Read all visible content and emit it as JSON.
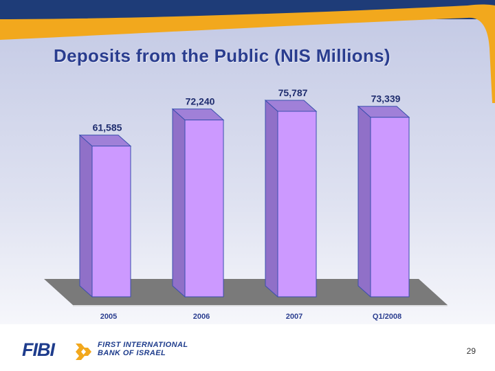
{
  "slide": {
    "title": "Deposits from the Public (NIS Millions)",
    "page_number": "29",
    "logo": {
      "brand": "FIBI",
      "line1": "FIRST INTERNATIONAL",
      "line2": "BANK OF ISRAEL"
    }
  },
  "colors": {
    "bar_front": "#cc99ff",
    "bar_side": "#9070c8",
    "bar_top": "#a080d8",
    "floor": "#7a7a7a",
    "title": "#2a3d8f",
    "header_navy": "#1e3c78",
    "header_orange": "#f2a81d"
  },
  "chart_data": {
    "type": "bar",
    "title": "Deposits from the Public (NIS Millions)",
    "categories": [
      "2005",
      "2006",
      "2007",
      "Q1/2008"
    ],
    "values": [
      61585,
      72240,
      75787,
      73339
    ],
    "data_labels": [
      "61,585",
      "72,240",
      "75,787",
      "73,339"
    ],
    "xlabel": "",
    "ylabel": "",
    "grid": false,
    "legend": "none"
  }
}
